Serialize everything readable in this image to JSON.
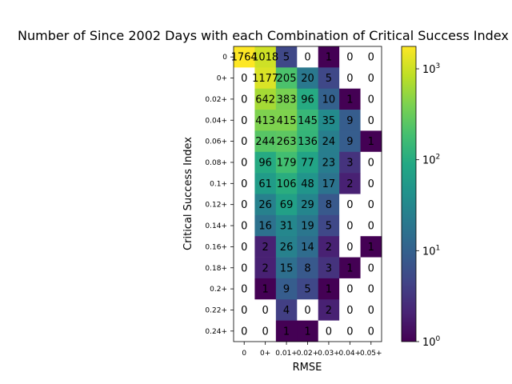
{
  "chart_data": {
    "type": "heatmap",
    "title": "Number of Since 2002 Days with each Combination of Critical Success Index",
    "xlabel": "RMSE",
    "ylabel": "Critical Success Index",
    "x_categories": [
      "0",
      "0+",
      "0.01+",
      "0.02+",
      "0.03+",
      "0.04+",
      "0.05+"
    ],
    "y_categories": [
      "0",
      "0+",
      "0.02+",
      "0.04+",
      "0.06+",
      "0.08+",
      "0.1+",
      "0.12+",
      "0.14+",
      "0.16+",
      "0.18+",
      "0.2+",
      "0.22+",
      "0.24+"
    ],
    "values": [
      [
        1764,
        1018,
        5,
        0,
        1,
        0,
        0
      ],
      [
        0,
        1177,
        205,
        20,
        5,
        0,
        0
      ],
      [
        0,
        642,
        383,
        96,
        10,
        1,
        0
      ],
      [
        0,
        413,
        415,
        145,
        35,
        9,
        0
      ],
      [
        0,
        244,
        263,
        136,
        24,
        9,
        1
      ],
      [
        0,
        96,
        179,
        77,
        23,
        3,
        0
      ],
      [
        0,
        61,
        106,
        48,
        17,
        2,
        0
      ],
      [
        0,
        26,
        69,
        29,
        8,
        0,
        0
      ],
      [
        0,
        16,
        31,
        19,
        5,
        0,
        0
      ],
      [
        0,
        2,
        26,
        14,
        2,
        0,
        1
      ],
      [
        0,
        2,
        15,
        8,
        3,
        1,
        0
      ],
      [
        0,
        1,
        9,
        5,
        1,
        0,
        0
      ],
      [
        0,
        0,
        4,
        0,
        2,
        0,
        0
      ],
      [
        0,
        0,
        1,
        1,
        0,
        0,
        0
      ]
    ],
    "colorbar": {
      "scale": "log",
      "range": [
        1,
        1764
      ],
      "colormap": "viridis",
      "tick_labels": [
        "10^0",
        "10^1",
        "10^2",
        "10^3"
      ],
      "tick_values": [
        1,
        10,
        100,
        1000
      ]
    },
    "zero_color": "#ffffff",
    "grid": false
  }
}
